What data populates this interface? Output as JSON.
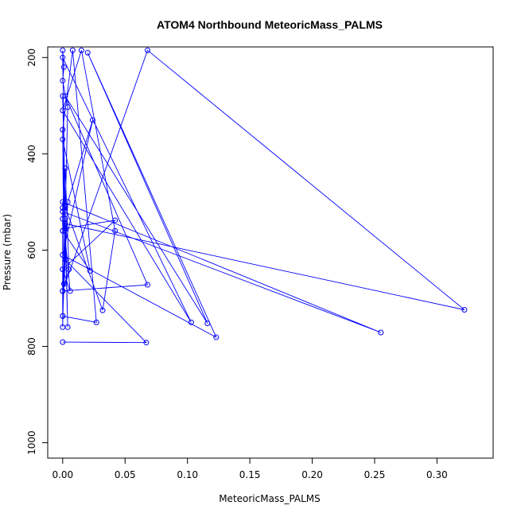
{
  "chart_data": {
    "type": "line",
    "title": "ATOM4 Northbound MeteoricMass_PALMS",
    "xlabel": "MeteoricMass_PALMS",
    "ylabel": "Pressure (mbar)",
    "xlim": [
      -0.012,
      0.345
    ],
    "ylim": [
      1032,
      178
    ],
    "y_reversed": true,
    "x_ticks": [
      0.0,
      0.05,
      0.1,
      0.15,
      0.2,
      0.25,
      0.3
    ],
    "x_tick_labels": [
      "0.00",
      "0.05",
      "0.10",
      "0.15",
      "0.20",
      "0.25",
      "0.30"
    ],
    "y_ticks": [
      200,
      400,
      600,
      800,
      1000
    ],
    "y_tick_labels": [
      "200",
      "400",
      "600",
      "800",
      "1000"
    ],
    "grid": false,
    "legend": "none",
    "series": [
      {
        "color": "#0000ff",
        "marker": "open-circle",
        "points": [
          [
            0.0,
            791
          ],
          [
            0.067,
            792
          ],
          [
            0.002,
            620
          ],
          [
            0.0,
            185
          ],
          [
            0.001,
            220
          ],
          [
            0.0,
            248
          ],
          [
            0.004,
            303
          ],
          [
            0.0,
            760
          ],
          [
            0.0,
            737
          ],
          [
            0.027,
            750
          ],
          [
            0.008,
            185
          ],
          [
            0.0,
            350
          ],
          [
            0.001,
            670
          ],
          [
            0.0,
            640
          ],
          [
            0.006,
            685
          ],
          [
            0.0,
            520
          ],
          [
            0.255,
            771
          ],
          [
            0.0,
            500
          ],
          [
            0.0,
            685
          ],
          [
            0.005,
            640
          ],
          [
            0.002,
            430
          ],
          [
            0.0,
            560
          ],
          [
            0.022,
            643
          ],
          [
            0.0,
            370
          ],
          [
            0.004,
            760
          ],
          [
            0.0,
            280
          ],
          [
            0.002,
            510
          ],
          [
            0.032,
            725
          ],
          [
            0.042,
            560
          ],
          [
            0.015,
            185
          ],
          [
            0.0,
            310
          ],
          [
            0.103,
            750
          ],
          [
            0.0,
            200
          ],
          [
            0.002,
            545
          ],
          [
            0.322,
            724
          ],
          [
            0.068,
            185
          ],
          [
            0.0,
            685
          ],
          [
            0.068,
            672
          ],
          [
            0.002,
            280
          ],
          [
            0.116,
            752
          ],
          [
            0.02,
            190
          ],
          [
            0.123,
            781
          ],
          [
            0.0,
            610
          ],
          [
            0.024,
            330
          ],
          [
            0.0,
            535
          ],
          [
            0.002,
            535
          ],
          [
            0.0,
            560
          ],
          [
            0.0,
            737
          ],
          [
            0.004,
            500
          ],
          [
            0.0,
            685
          ],
          [
            0.002,
            555
          ],
          [
            0.042,
            538
          ],
          [
            0.0,
            640
          ],
          [
            0.0,
            512
          ]
        ]
      }
    ]
  }
}
